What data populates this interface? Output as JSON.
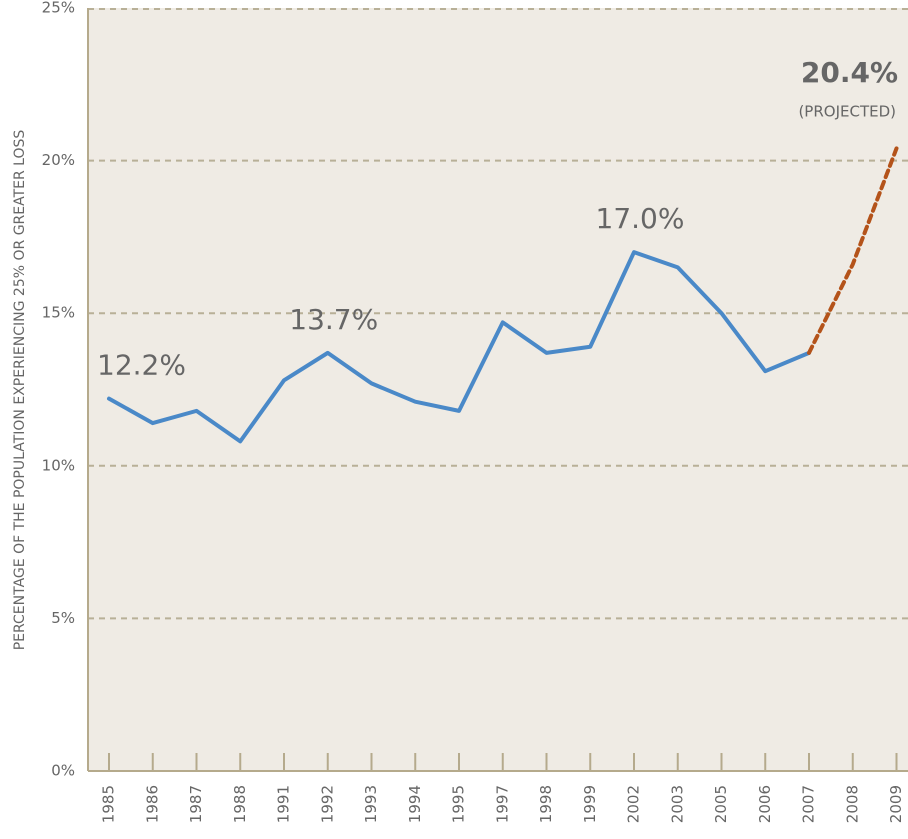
{
  "chart_data": {
    "type": "line",
    "ylabel": "PERCENTAGE OF THE POPULATION EXPERIENCING 25% OR GREATER LOSS",
    "categories": [
      "1985",
      "1986",
      "1987",
      "1988",
      "1991",
      "1992",
      "1993",
      "1994",
      "1995",
      "1997",
      "1998",
      "1999",
      "2002",
      "2003",
      "2005",
      "2006",
      "2007",
      "2008",
      "2009"
    ],
    "series": [
      {
        "color": "#4a89c8",
        "dashed": false,
        "values": [
          12.2,
          11.4,
          11.8,
          10.8,
          12.8,
          13.7,
          12.7,
          12.1,
          11.8,
          14.7,
          13.7,
          13.9,
          17.0,
          16.5,
          15.0,
          13.1,
          13.7,
          null,
          null
        ],
        "value_labels": [
          "12.2%",
          null,
          null,
          null,
          null,
          "13.7%",
          null,
          null,
          null,
          null,
          null,
          null,
          "17.0%",
          null,
          null,
          null,
          null,
          null,
          null
        ]
      },
      {
        "color": "#b4531a",
        "dashed": true,
        "values": [
          null,
          null,
          null,
          null,
          null,
          null,
          null,
          null,
          null,
          null,
          null,
          null,
          null,
          null,
          null,
          null,
          13.7,
          16.6,
          20.4
        ],
        "value_labels": [
          null,
          null,
          null,
          null,
          null,
          null,
          null,
          null,
          null,
          null,
          null,
          null,
          null,
          null,
          null,
          null,
          null,
          null,
          "20.4%"
        ]
      }
    ],
    "annotations": [
      "(PROJECTED)"
    ],
    "ylim": [
      0,
      25
    ],
    "yticks": [
      {
        "value": 0,
        "label": "0%"
      },
      {
        "value": 5,
        "label": "5%"
      },
      {
        "value": 10,
        "label": "10%"
      },
      {
        "value": 15,
        "label": "15%"
      },
      {
        "value": 20,
        "label": "20%"
      },
      {
        "value": 25,
        "label": "25%"
      }
    ],
    "grid": true
  }
}
